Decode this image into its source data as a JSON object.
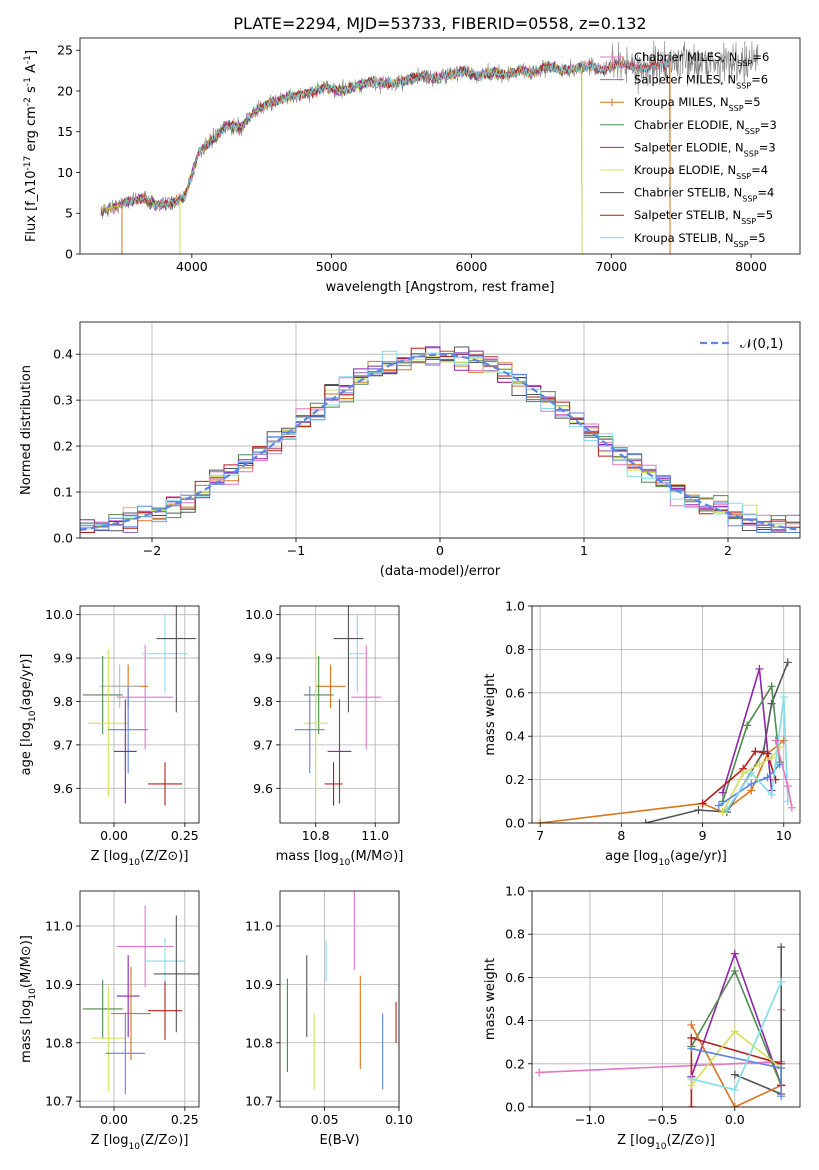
{
  "figure_title": "PLATE=2294, MJD=53733, FIBERID=0558, z=0.132",
  "palette": [
    "#e377c2",
    "#9467bd",
    "#d9751f",
    "#4e8b4e",
    "#8e24aa",
    "#d4e157",
    "#555555",
    "#b71c1c",
    "#80deea",
    "#5b86e5",
    "#7f7f7f",
    "#2e7d32"
  ],
  "chart_data": [
    {
      "id": "spectrum",
      "type": "line",
      "title": "",
      "xlabel": "wavelength [Angstrom, rest frame]",
      "ylabel": "Flux [f_λ10^-17 erg cm^-2 s^-1 A^-1]",
      "xlim": [
        3200,
        8350
      ],
      "ylim": [
        0,
        26.5
      ],
      "xticks": [
        4000,
        5000,
        6000,
        7000,
        8000
      ],
      "yticks": [
        0,
        5,
        10,
        15,
        20,
        25
      ],
      "grid": false,
      "legend_position": "right",
      "series": [
        {
          "name": "Chabrier MILES, N_SSP=6",
          "color": "#e377c2",
          "marker": "+"
        },
        {
          "name": "Salpeter MILES, N_SSP=6",
          "color": "#9467bd",
          "marker": ""
        },
        {
          "name": "Kroupa MILES, N_SSP=5",
          "color": "#d9751f",
          "marker": "+"
        },
        {
          "name": "Chabrier ELODIE, N_SSP=3",
          "color": "#4e8b4e",
          "marker": ""
        },
        {
          "name": "Salpeter ELODIE, N_SSP=3",
          "color": "#8e24aa",
          "marker": ""
        },
        {
          "name": "Kroupa ELODIE, N_SSP=4",
          "color": "#d4e157",
          "marker": ""
        },
        {
          "name": "Chabrier STELIB, N_SSP=4",
          "color": "#555555",
          "marker": ""
        },
        {
          "name": "Salpeter STELIB, N_SSP=5",
          "color": "#b71c1c",
          "marker": ""
        },
        {
          "name": "Kroupa STELIB, N_SSP=5",
          "color": "#80deea",
          "marker": ""
        }
      ],
      "continuum": {
        "x": [
          3350,
          3450,
          3550,
          3650,
          3750,
          3850,
          3950,
          4050,
          4150,
          4250,
          4350,
          4450,
          4550,
          4650,
          4750,
          4850,
          4950,
          5050,
          5150,
          5250,
          5350,
          5450,
          5550,
          5650,
          5750,
          5850,
          5950,
          6050,
          6150,
          6250,
          6350,
          6450,
          6550,
          6650,
          6750,
          6850,
          6950,
          7050,
          7150,
          7250,
          7350,
          7450
        ],
        "y": [
          5.2,
          5.8,
          6.5,
          6.8,
          6.0,
          6.2,
          7.0,
          12.5,
          14.0,
          15.8,
          15.5,
          17.5,
          18.5,
          19.0,
          19.5,
          19.8,
          20.5,
          20.0,
          20.5,
          21.0,
          21.0,
          20.8,
          21.5,
          21.8,
          21.5,
          22.0,
          22.5,
          21.8,
          22.3,
          22.0,
          22.5,
          22.3,
          23.0,
          22.5,
          22.8,
          23.0,
          22.5,
          23.5,
          23.0,
          22.8,
          23.2,
          23.5
        ]
      },
      "model_window": {
        "x_start": 3500,
        "x_end": 7420,
        "drop_wavelengths": [
          3500,
          3915,
          6790,
          7420
        ]
      }
    },
    {
      "id": "residuals",
      "type": "line",
      "title": "",
      "xlabel": "(data-model)/error",
      "ylabel": "Normed distribution",
      "xlim": [
        -2.5,
        2.5
      ],
      "ylim": [
        0,
        0.47
      ],
      "xticks": [
        -2,
        -1,
        0,
        1,
        2
      ],
      "yticks": [
        0.0,
        0.1,
        0.2,
        0.3,
        0.4
      ],
      "grid": true,
      "legend_position": "top-right",
      "legend": [
        "𝒩(0,1)"
      ],
      "reference_curve": {
        "name": "𝒩(0,1)",
        "color": "#5b86e5",
        "dashed": true
      },
      "bin_width": 0.1
    },
    {
      "id": "age-vs-z",
      "type": "scatter",
      "xlabel": "Z [log10(Z/Z⊙)]",
      "ylabel": "age  [log10(age/yr)]",
      "xlim": [
        -0.12,
        0.3
      ],
      "ylim": [
        9.52,
        10.02
      ],
      "xticks": [
        0.0,
        0.25
      ],
      "yticks": [
        9.6,
        9.7,
        9.8,
        9.9,
        10.0
      ],
      "grid": true,
      "points": [
        {
          "x": 0.11,
          "y": 9.81,
          "xerr": 0.1,
          "yerr": 0.12,
          "color": "#e377c2"
        },
        {
          "x": 0.18,
          "y": 9.91,
          "xerr": 0.08,
          "yerr": 0.09,
          "color": "#80deea"
        },
        {
          "x": 0.22,
          "y": 9.945,
          "xerr": 0.07,
          "yerr": 0.17,
          "color": "#555555"
        },
        {
          "x": 0.05,
          "y": 9.835,
          "xerr": 0.07,
          "yerr": 0.05,
          "color": "#d9751f"
        },
        {
          "x": 0.02,
          "y": 9.835,
          "xerr": 0.07,
          "yerr": 0.05,
          "color": "#b0bec5"
        },
        {
          "x": -0.04,
          "y": 9.815,
          "xerr": 0.07,
          "yerr": 0.09,
          "color": "#4e8b4e"
        },
        {
          "x": -0.02,
          "y": 9.75,
          "xerr": 0.07,
          "yerr": 0.17,
          "color": "#d4e157"
        },
        {
          "x": 0.05,
          "y": 9.735,
          "xerr": 0.07,
          "yerr": 0.1,
          "color": "#5b86e5"
        },
        {
          "x": 0.04,
          "y": 9.685,
          "xerr": 0.04,
          "yerr": 0.12,
          "color": "#8e24aa"
        },
        {
          "x": 0.18,
          "y": 9.61,
          "xerr": 0.06,
          "yerr": 0.05,
          "color": "#b71c1c"
        }
      ]
    },
    {
      "id": "age-vs-mass",
      "type": "scatter",
      "xlabel": "mass [log10(M/M⊙)]",
      "ylabel": "",
      "xlim": [
        10.68,
        11.08
      ],
      "ylim": [
        9.52,
        10.02
      ],
      "xticks": [
        10.8,
        11.0
      ],
      "yticks": [
        9.6,
        9.7,
        9.8,
        9.9,
        10.0
      ],
      "grid": true,
      "points": [
        {
          "x": 10.97,
          "y": 9.81,
          "xerr": 0.05,
          "yerr": 0.12,
          "color": "#e377c2"
        },
        {
          "x": 10.94,
          "y": 9.91,
          "xerr": 0.03,
          "yerr": 0.09,
          "color": "#80deea"
        },
        {
          "x": 10.91,
          "y": 9.945,
          "xerr": 0.05,
          "yerr": 0.17,
          "color": "#555555"
        },
        {
          "x": 10.85,
          "y": 9.835,
          "xerr": 0.05,
          "yerr": 0.05,
          "color": "#d9751f"
        },
        {
          "x": 10.81,
          "y": 9.815,
          "xerr": 0.05,
          "yerr": 0.09,
          "color": "#4e8b4e"
        },
        {
          "x": 10.8,
          "y": 9.75,
          "xerr": 0.04,
          "yerr": 0.17,
          "color": "#d4e157"
        },
        {
          "x": 10.78,
          "y": 9.735,
          "xerr": 0.05,
          "yerr": 0.1,
          "color": "#5b86e5"
        },
        {
          "x": 10.88,
          "y": 9.685,
          "xerr": 0.04,
          "yerr": 0.12,
          "color": "#8e24aa"
        },
        {
          "x": 10.86,
          "y": 9.61,
          "xerr": 0.03,
          "yerr": 0.05,
          "color": "#b71c1c"
        }
      ]
    },
    {
      "id": "weight-vs-age",
      "type": "line",
      "xlabel": "age  [log10(age/yr)]",
      "ylabel": "mass weight",
      "xlim": [
        6.9,
        10.2
      ],
      "ylim": [
        0,
        1.0
      ],
      "xticks": [
        7,
        8,
        9,
        10
      ],
      "yticks": [
        0.0,
        0.2,
        0.4,
        0.6,
        0.8,
        1.0
      ],
      "grid": true,
      "series": [
        {
          "color": "#d9751f",
          "x": [
            7.0,
            9.0,
            9.25,
            9.6,
            9.8,
            10.0
          ],
          "y": [
            0.0,
            0.09,
            0.05,
            0.15,
            0.32,
            0.38
          ]
        },
        {
          "color": "#555555",
          "x": [
            8.3,
            8.95,
            9.3,
            9.75,
            9.85,
            10.05
          ],
          "y": [
            0.0,
            0.06,
            0.05,
            0.33,
            0.55,
            0.74
          ]
        },
        {
          "color": "#8e24aa",
          "x": [
            9.25,
            9.7,
            9.85
          ],
          "y": [
            0.14,
            0.71,
            0.15
          ]
        },
        {
          "color": "#4e8b4e",
          "x": [
            9.25,
            9.55,
            9.85,
            9.95
          ],
          "y": [
            0.1,
            0.45,
            0.63,
            0.28
          ]
        },
        {
          "color": "#b71c1c",
          "x": [
            9.0,
            9.5,
            9.65,
            9.8,
            9.9
          ],
          "y": [
            0.09,
            0.25,
            0.33,
            0.32,
            0.2
          ]
        },
        {
          "color": "#d4e157",
          "x": [
            9.25,
            9.5,
            9.7,
            9.85,
            9.95
          ],
          "y": [
            0.05,
            0.23,
            0.27,
            0.3,
            0.35
          ]
        },
        {
          "color": "#5b86e5",
          "x": [
            9.2,
            9.6,
            9.8,
            9.95
          ],
          "y": [
            0.08,
            0.18,
            0.21,
            0.27
          ]
        },
        {
          "color": "#80deea",
          "x": [
            9.3,
            9.6,
            9.85,
            10.0,
            10.05
          ],
          "y": [
            0.06,
            0.23,
            0.13,
            0.58,
            0.1
          ]
        },
        {
          "color": "#e377c2",
          "x": [
            9.9,
            10.05,
            10.1
          ],
          "y": [
            0.38,
            0.17,
            0.07
          ]
        }
      ]
    },
    {
      "id": "mass-vs-z",
      "type": "scatter",
      "xlabel": "Z [log10(Z/Z⊙)]",
      "ylabel": "mass [log10(M/M⊙)]",
      "xlim": [
        -0.12,
        0.3
      ],
      "ylim": [
        10.69,
        11.06
      ],
      "xticks": [
        0.0,
        0.25
      ],
      "yticks": [
        10.7,
        10.8,
        10.9,
        11.0
      ],
      "grid": true,
      "points": [
        {
          "x": 0.11,
          "y": 10.965,
          "xerr": 0.1,
          "yerr": 0.07,
          "color": "#e377c2"
        },
        {
          "x": 0.18,
          "y": 10.94,
          "xerr": 0.07,
          "yerr": 0.04,
          "color": "#80deea"
        },
        {
          "x": 0.22,
          "y": 10.918,
          "xerr": 0.08,
          "yerr": 0.1,
          "color": "#555555"
        },
        {
          "x": 0.05,
          "y": 10.88,
          "xerr": 0.04,
          "yerr": 0.07,
          "color": "#8e24aa"
        },
        {
          "x": -0.04,
          "y": 10.858,
          "xerr": 0.07,
          "yerr": 0.05,
          "color": "#4e8b4e"
        },
        {
          "x": 0.18,
          "y": 10.855,
          "xerr": 0.06,
          "yerr": 0.05,
          "color": "#b71c1c"
        },
        {
          "x": 0.06,
          "y": 10.85,
          "xerr": 0.07,
          "yerr": 0.08,
          "color": "#d9751f"
        },
        {
          "x": -0.02,
          "y": 10.808,
          "xerr": 0.06,
          "yerr": 0.09,
          "color": "#d4e157"
        },
        {
          "x": 0.04,
          "y": 10.782,
          "xerr": 0.07,
          "yerr": 0.07,
          "color": "#5b86e5"
        }
      ]
    },
    {
      "id": "mass-vs-ebv",
      "type": "scatter",
      "xlabel": "E(B-V)",
      "ylabel": "",
      "xlim": [
        0.02,
        0.1
      ],
      "ylim": [
        10.69,
        11.06
      ],
      "xticks": [
        0.05,
        0.1
      ],
      "yticks": [
        10.7,
        10.8,
        10.9,
        11.0
      ],
      "grid": true,
      "points": [
        {
          "x": 0.025,
          "y": 10.83,
          "yerr": 0.08,
          "color": "#4e8b4e"
        },
        {
          "x": 0.038,
          "y": 10.88,
          "yerr": 0.07,
          "color": "#555555"
        },
        {
          "x": 0.043,
          "y": 10.785,
          "yerr": 0.065,
          "color": "#d4e157"
        },
        {
          "x": 0.051,
          "y": 10.94,
          "yerr": 0.035,
          "color": "#80deea"
        },
        {
          "x": 0.07,
          "y": 11.015,
          "yerr": 0.09,
          "color": "#e377c2"
        },
        {
          "x": 0.074,
          "y": 10.835,
          "yerr": 0.08,
          "color": "#d9751f"
        },
        {
          "x": 0.089,
          "y": 10.785,
          "yerr": 0.065,
          "color": "#5b86e5"
        },
        {
          "x": 0.098,
          "y": 10.835,
          "yerr": 0.035,
          "color": "#b71c1c"
        }
      ]
    },
    {
      "id": "weight-vs-z",
      "type": "line",
      "xlabel": "Z [log10(Z/Z⊙)]",
      "ylabel": "mass weight",
      "xlim": [
        -1.4,
        0.45
      ],
      "ylim": [
        0,
        1.0
      ],
      "xticks": [
        -1.0,
        -0.5,
        0.0
      ],
      "yticks": [
        0.0,
        0.2,
        0.4,
        0.6,
        0.8,
        1.0
      ],
      "grid": true,
      "series": [
        {
          "color": "#e377c2",
          "x": [
            -1.35,
            0.32,
            0.32
          ],
          "y": [
            0.16,
            0.21,
            0.45
          ]
        },
        {
          "color": "#8e24aa",
          "x": [
            -0.3,
            0.0,
            0.32
          ],
          "y": [
            0.14,
            0.71,
            0.1
          ]
        },
        {
          "color": "#4e8b4e",
          "x": [
            -0.3,
            0.0,
            0.32
          ],
          "y": [
            0.28,
            0.63,
            0.1
          ]
        },
        {
          "color": "#555555",
          "x": [
            0.0,
            0.32,
            0.32
          ],
          "y": [
            0.15,
            0.06,
            0.74
          ]
        },
        {
          "color": "#d9751f",
          "x": [
            -0.3,
            0.0,
            0.32
          ],
          "y": [
            0.38,
            0.0,
            0.1
          ]
        },
        {
          "color": "#b71c1c",
          "x": [
            -0.3,
            -0.3,
            0.32,
            0.32
          ],
          "y": [
            0.0,
            0.32,
            0.2,
            0.1
          ]
        },
        {
          "color": "#d4e157",
          "x": [
            -0.3,
            0.0,
            0.32
          ],
          "y": [
            0.1,
            0.35,
            0.18
          ]
        },
        {
          "color": "#5b86e5",
          "x": [
            -0.3,
            0.32,
            0.32
          ],
          "y": [
            0.27,
            0.18,
            0.05
          ]
        },
        {
          "color": "#80deea",
          "x": [
            -0.3,
            0.0,
            0.32
          ],
          "y": [
            0.13,
            0.08,
            0.58
          ]
        }
      ]
    }
  ]
}
